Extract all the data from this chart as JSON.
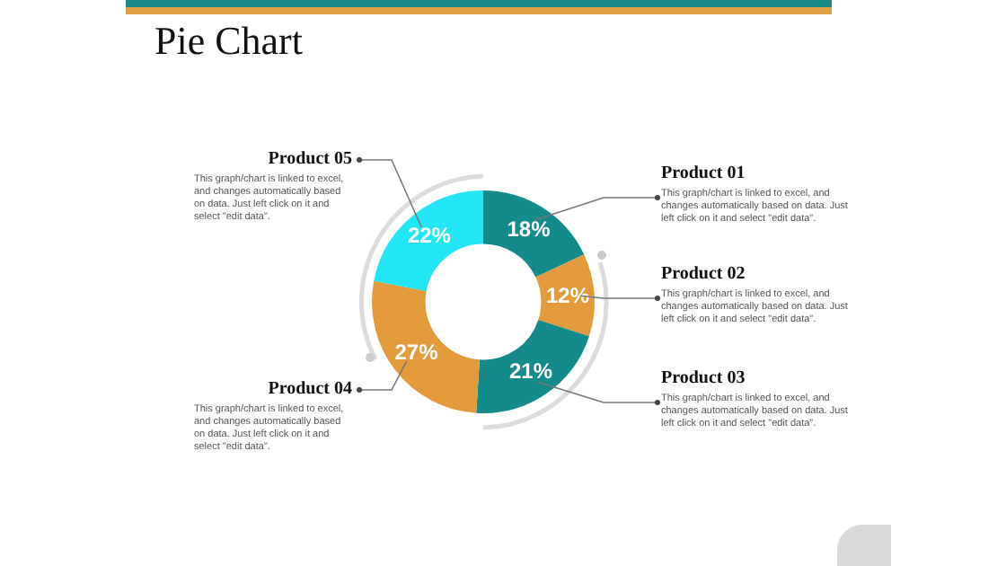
{
  "chart_data": {
    "type": "donut",
    "title": "Pie Chart",
    "categories": [
      "Product 01",
      "Product 02",
      "Product 03",
      "Product 04",
      "Product 05"
    ],
    "values": [
      18,
      12,
      21,
      27,
      22
    ],
    "colors": [
      "#138a8c",
      "#e39a3a",
      "#138a8c",
      "#e39a3a",
      "#22e5f5"
    ],
    "value_labels": [
      "18%",
      "12%",
      "21%",
      "27%",
      "22%"
    ],
    "annotations": [
      "This graph/chart is linked to excel, and changes automatically based on data. Just left click on it and select \"edit data\".",
      "This graph/chart is linked to excel, and changes automatically based on data. Just left click on it and select \"edit data\".",
      "This graph/chart is linked to excel, and changes automatically based on data. Just left click on it and select \"edit data\".",
      "This graph/chart is linked to excel, and changes automatically based on data. Just left click on it and select \"edit data\".",
      "This graph/chart is linked to excel, and changes automatically based on data. Just left click on it and select \"edit data\"."
    ],
    "legend": false
  }
}
